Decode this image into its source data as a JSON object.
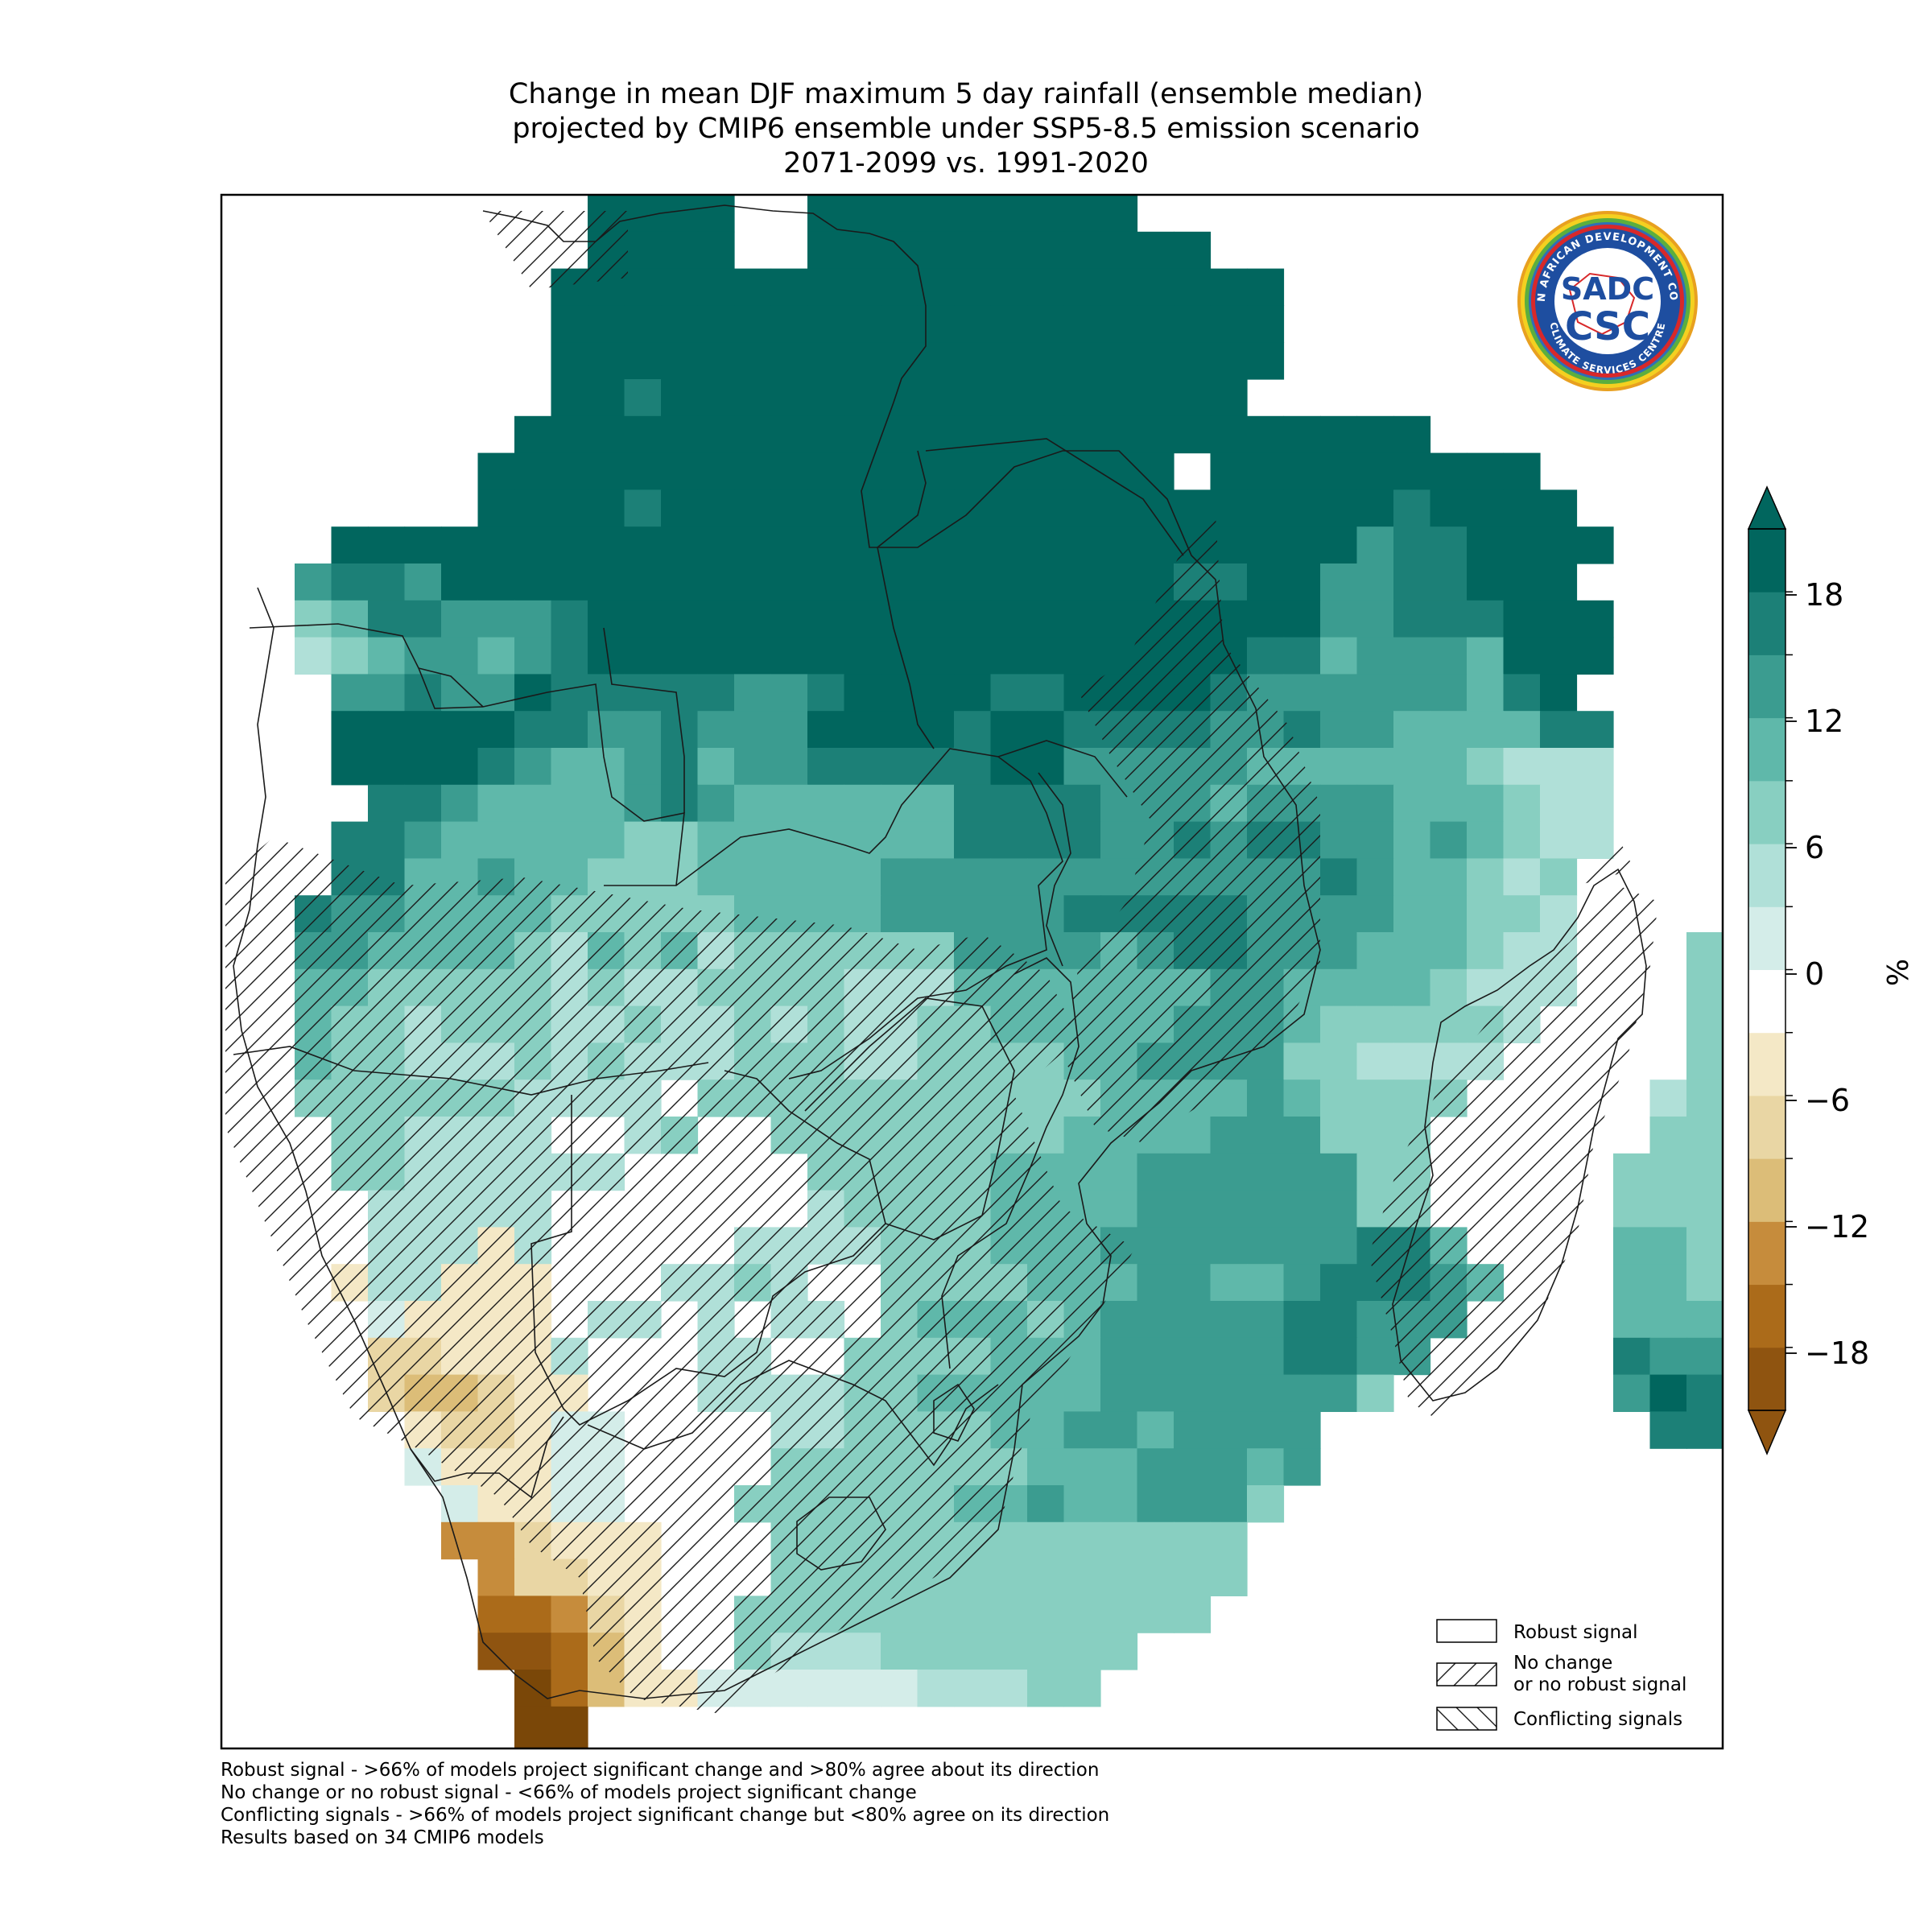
{
  "title": {
    "line1": "Change in mean DJF maximum 5 day rainfall (ensemble median)",
    "line2": "projected by CMIP6 ensemble under SSP5-8.5 emission scenario",
    "line3": "2071-2099 vs. 1991-2020"
  },
  "logo": {
    "text_top": "SADC",
    "text_bottom": "CSC",
    "ring_text_upper": "SOUTHERN AFRICAN DEVELOPMENT COMMUNITY",
    "ring_text_lower": "CLIMATE SERVICES CENTRE"
  },
  "colorbar": {
    "unit": "%",
    "ticks": [
      "18",
      "12",
      "6",
      "0",
      "−6",
      "−12",
      "−18"
    ],
    "colors": [
      "#8f5410",
      "#ab6b1a",
      "#c68c3c",
      "#dcbd78",
      "#e9d6a4",
      "#f4e8c6",
      "#ffffff",
      "#d4ede9",
      "#b0e0d8",
      "#88cfc1",
      "#5fb8aa",
      "#3b9c90",
      "#1c8077",
      "#01665e"
    ]
  },
  "legend": {
    "robust": "Robust signal",
    "nochange_line1": "No change",
    "nochange_line2": "or no robust signal",
    "conflicting": "Conflicting signals"
  },
  "footer": {
    "line1": "Robust signal - >66% of models project significant change and >80% agree about its direction",
    "line2": "No change or no robust signal - <66% of models project significant change",
    "line3": "Conflicting signals - >66% of models project significant change but <80% agree on its direction",
    "line4": "Results based on 34 CMIP6 models"
  },
  "map_data": {
    "rows": [
      "..........AAAA..AAAAAAAAA.......................",
      "..........AAAA..AAAAAAAAAAA.....................",
      ".........AAAAAAAAAAAAAAAAAAAA...................",
      ".........AAAAAAAAAAAAAAAAAAAA...................",
      ".........AAAAAAAAAAAAAAAAAAAA...................",
      ".........AABAAAAAAAAAAAAAAAA....................",
      "........AAAAAAAAAAAAAAAAAAAAAAAAA...............",
      ".......AAAAAAAAAAAAAAAAAAA.AAAAAAAAA............",
      ".......AAAABAAAAAAAAAAAAAAAAAAAABAAAA...........",
      "...AAAAAAAAAAAAAAAAAAAAAAAAAAAACBBAAAA..........",
      "..CBBCAAAAAAAAAAAAAAAAAAAABBAACCBBAAA...........",
      "..EDBBCCCBAAAAAAAAAAAAAAAAAAAACCBBBAAA..........",
      "..FEDCCDCBAAAAAAAAAAAAAAAAAABBDCCCDAAA..........",
      "...CCBCCABBBBBCCBAAAABBAAAABCCCCCCDBA...........",
      "...AAAAABBCCBCCCAAAABAABBBBCCBCCDDDDBB..........",
      "...AAAABCDDCBDCCBBBBBAACCCCCDDDDDDEFFF..........",
      "....BBCDDDDCBCDDDDDDBBBBCCCDCCCCDDDEFF..........",
      "...BBCDDDDDEEDDDDDDDBBBBCCBCBBCCDCDEFF..........",
      "...BBDDCDDEEEDDDDDCCCCCCCCCCCCBCDDEFE........EF.",
      "..BCCDDDDEEEEEDDDDCCCCCBBBBBCCCCDDEEF......EEEFE",
      "..CCDDDDEFDEDFEEEEEECCCCDCBBCCCDDDEFF...EEEEEEFF",
      "..DDEEEEEFEFFEEEEFFFDDDDDDDCCDDDDEFFF...EEEEEEEF",
      "..DEEFEEEFFEFFEFEFFEEDDDDDCCCDEEEEEF....EEEEEEFF",
      "..DEEFFFEFEFFFEEEFFEEEEDDCCCCEEFFFF.....EEEEEEEF",
      "..EEEEEEFFFF.EEEEEEEEEEEDDDDCDEEEE.....FEEEDDDD.",
      "...EEFFFF..FE..EEEEEEEEDDDDCCCEEE......EEEEDDDE.",
      "...EEFFFFFF.....EEEEEDDDDCCCCCCEE.....EEEEEEDDE.",
      "....FFFFF.......FEEEEDDDDCCCCCCEE.....EEEEEEEE..",
      "....FFFHF.....FFFFEEEDDDCCCCCCCBBD....DDEEEDDD..",
      "...HFFHHH...FFEF..EEEEDDDCCDDCBBBCD...DDEEDDDE..",
      "....GHHHH.FF.F.FF.EDDDEDCCCCCBBCCC....DDDEEDDE..",
      "....IIHHHF...FF..EEEEDDDCCCCCBBCC.....BCCDDDD...",
      "....IJJIHH...FFFFEEDDDDDCCCCCCCE......CABDDD....",
      ".....HIIHGG....FFEEEEDDCCDCCCC.........BBDE.....",
      ".....GHHHGG....EEEEEEEDDDCCCDC..................",
      "......GHHGG...EEEEEEDDCDDCCCE...................",
      "......KKIHHH...EEEEEEEEEEEEE....................",
      ".......KIIHH...EEEEEEEEEEEEE....................",
      ".......LLKIH..EEEEEEEEEEEEE.....................",
      ".......MMLJH..EFFFEEEEEEE.......................",
      "........NLJHHGGGGGGFFFEE........................",
      "........NN......................................",
      "........NN......................................",
      "................................................"
    ],
    "codes": {
      "A": "#01665e",
      "B": "#1c8077",
      "C": "#3b9c90",
      "D": "#5fb8aa",
      "E": "#88cfc1",
      "F": "#b0e0d8",
      "G": "#d4ede9",
      "H": "#f4e8c6",
      "I": "#e9d6a4",
      "J": "#dcbd78",
      "K": "#c68c3c",
      "L": "#ab6b1a",
      "M": "#8f5410",
      "N": "#7a4708"
    }
  }
}
